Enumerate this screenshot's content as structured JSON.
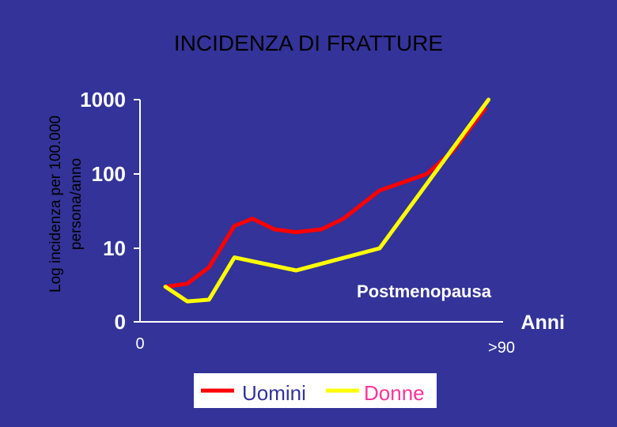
{
  "colors": {
    "background": "#333399",
    "axis": "#ffffff",
    "uomini": "#ff0000",
    "donne": "#ffff00",
    "legend_bg": "#ffffff",
    "uomini_text": "#333399",
    "donne_text": "#ff3399"
  },
  "chart_data": {
    "type": "line",
    "title": "INCIDENZA DI FRATTURE",
    "ylabel": "Log incidenza per 100.000 persona/anno",
    "yscale": "log",
    "yticks": [
      {
        "label": "0",
        "value": 1
      },
      {
        "label": "10",
        "value": 10
      },
      {
        "label": "100",
        "value": 100
      },
      {
        "label": "1000",
        "value": 1000
      }
    ],
    "x_start_label": "0",
    "x_end_label": ">90",
    "x_axis_name": "Anni",
    "annotation": "Postmenopausa",
    "legend_placement": "bottom-center",
    "series": [
      {
        "name": "Uomini",
        "color": "#ff0000",
        "x": [
          0.07,
          0.13,
          0.19,
          0.26,
          0.31,
          0.37,
          0.43,
          0.5,
          0.56,
          0.66,
          0.79,
          0.86,
          0.95
        ],
        "y": [
          3.0,
          3.3,
          5.5,
          20,
          25,
          18,
          16.5,
          18,
          25,
          60,
          100,
          200,
          750
        ]
      },
      {
        "name": "Donne",
        "color": "#ffff00",
        "x": [
          0.07,
          0.13,
          0.19,
          0.26,
          0.43,
          0.66,
          0.96
        ],
        "y": [
          3.0,
          1.9,
          2.0,
          7.5,
          5.0,
          10.0,
          1000
        ]
      }
    ],
    "grid": false
  }
}
